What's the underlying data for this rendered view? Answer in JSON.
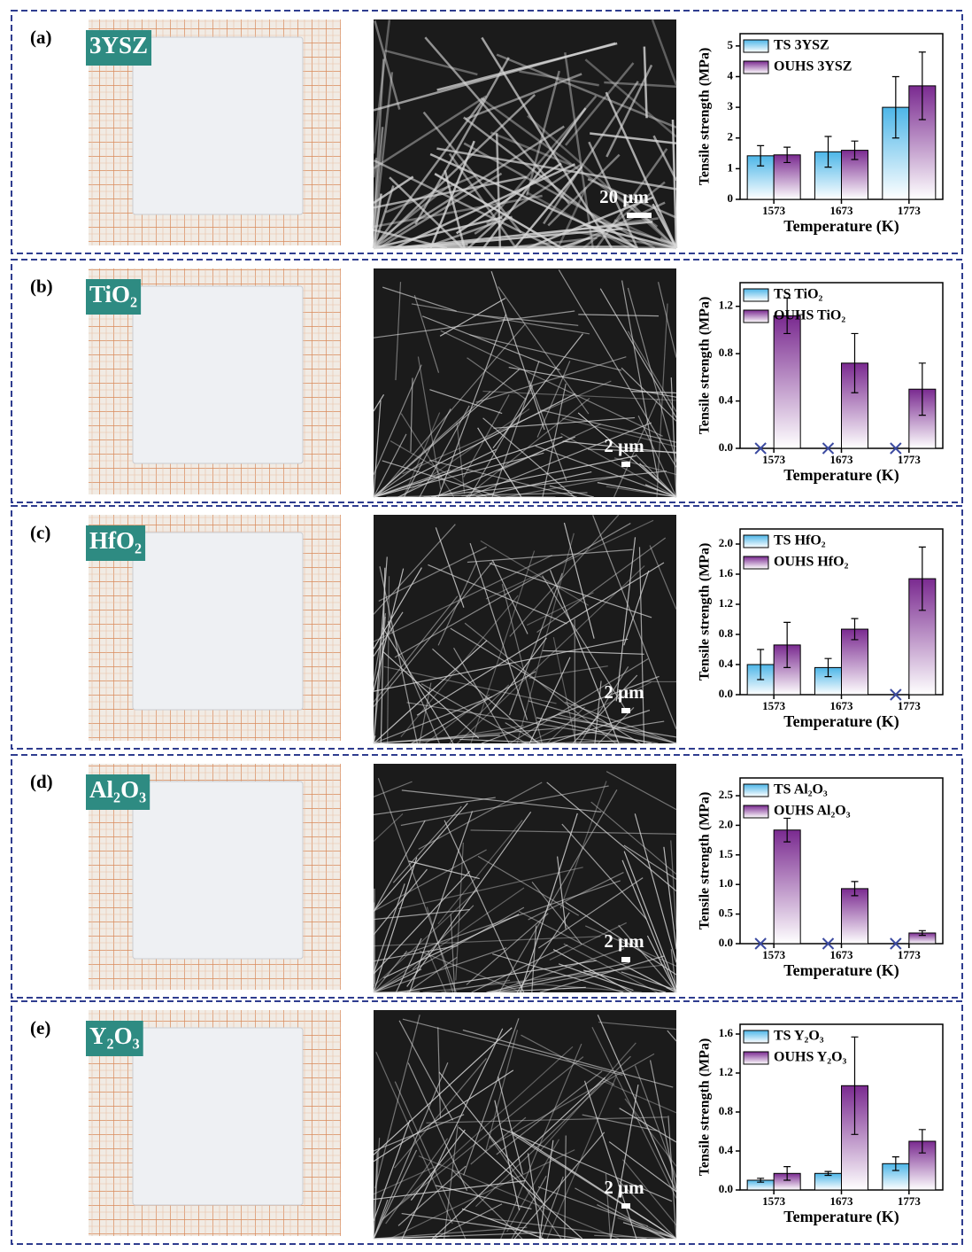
{
  "panels": [
    {
      "label": "(a)",
      "material": "3YSZ",
      "scale_bar": "20 μm"
    },
    {
      "label": "(b)",
      "material": "TiO₂",
      "scale_bar": "2 μm"
    },
    {
      "label": "(c)",
      "material": "HfO₂",
      "scale_bar": "2 μm"
    },
    {
      "label": "(d)",
      "material": "Al₂O₃",
      "scale_bar": "2 μm"
    },
    {
      "label": "(e)",
      "material": "Y₂O₃",
      "scale_bar": "2 μm"
    }
  ],
  "chart_data": [
    {
      "type": "bar",
      "x_label": "Temperature (K)",
      "y_label": "Tensile strength (MPa)",
      "categories": [
        "1573",
        "1673",
        "1773"
      ],
      "series": [
        {
          "name": "TS 3YSZ",
          "color": "#4db6e8",
          "values": [
            1.42,
            1.55,
            3.0
          ],
          "errors": [
            0.33,
            0.5,
            1.0
          ]
        },
        {
          "name": "OUHS 3YSZ",
          "color": "#7a2a90",
          "values": [
            1.45,
            1.6,
            3.7
          ],
          "errors": [
            0.25,
            0.3,
            1.1
          ]
        }
      ],
      "ylim": [
        0,
        5.4
      ],
      "yticks": [
        0,
        1,
        2,
        3,
        4,
        5
      ]
    },
    {
      "type": "bar",
      "x_label": "Temperature (K)",
      "y_label": "Tensile strength (MPa)",
      "categories": [
        "1573",
        "1673",
        "1773"
      ],
      "series": [
        {
          "name": "TS TiO₂",
          "color": "#4db6e8",
          "values": [
            0,
            0,
            0
          ],
          "errors": [
            null,
            null,
            null
          ]
        },
        {
          "name": "OUHS TiO₂",
          "color": "#7a2a90",
          "values": [
            1.12,
            0.72,
            0.5
          ],
          "errors": [
            0.15,
            0.25,
            0.22
          ]
        }
      ],
      "ylim": [
        0,
        1.4
      ],
      "yticks": [
        {
          "value": 0,
          "label": "0.0"
        },
        0.4,
        0.8,
        1.2
      ]
    },
    {
      "type": "bar",
      "x_label": "Temperature (K)",
      "y_label": "Tensile strength (MPa)",
      "categories": [
        "1573",
        "1673",
        "1773"
      ],
      "series": [
        {
          "name": "TS HfO₂",
          "color": "#4db6e8",
          "values": [
            0.4,
            0.36,
            0
          ],
          "errors": [
            0.2,
            0.12,
            null
          ]
        },
        {
          "name": "OUHS HfO₂",
          "color": "#7a2a90",
          "values": [
            0.66,
            0.87,
            1.54
          ],
          "errors": [
            0.3,
            0.14,
            0.42
          ]
        }
      ],
      "ylim": [
        0,
        2.2
      ],
      "yticks": [
        {
          "value": 0,
          "label": "0.0"
        },
        0.4,
        0.8,
        1.2,
        1.6,
        {
          "value": 2,
          "label": "2.0"
        }
      ]
    },
    {
      "type": "bar",
      "x_label": "Temperature (K)",
      "y_label": "Tensile strength (MPa)",
      "categories": [
        "1573",
        "1673",
        "1773"
      ],
      "series": [
        {
          "name": "TS Al₂O₃",
          "color": "#4db6e8",
          "values": [
            0,
            0,
            0
          ],
          "errors": [
            null,
            null,
            null
          ]
        },
        {
          "name": "OUHS Al₂O₃",
          "color": "#7a2a90",
          "values": [
            1.92,
            0.93,
            0.18
          ],
          "errors": [
            0.2,
            0.12,
            0.04
          ]
        }
      ],
      "ylim": [
        0,
        2.8
      ],
      "yticks": [
        {
          "value": 0,
          "label": "0.0"
        },
        0.5,
        {
          "value": 1,
          "label": "1.0"
        },
        1.5,
        {
          "value": 2,
          "label": "2.0"
        },
        2.5
      ]
    },
    {
      "type": "bar",
      "x_label": "Temperature (K)",
      "y_label": "Tensile strength (MPa)",
      "categories": [
        "1573",
        "1673",
        "1773"
      ],
      "series": [
        {
          "name": "TS Y₂O₃",
          "color": "#4db6e8",
          "values": [
            0.1,
            0.17,
            0.27
          ],
          "errors": [
            0.02,
            0.02,
            0.07
          ]
        },
        {
          "name": "OUHS Y₂O₃",
          "color": "#7a2a90",
          "values": [
            0.17,
            1.07,
            0.5
          ],
          "errors": [
            0.07,
            0.5,
            0.12
          ]
        }
      ],
      "ylim": [
        0,
        1.7
      ],
      "yticks": [
        {
          "value": 0,
          "label": "0.0"
        },
        0.4,
        0.8,
        1.2,
        1.6
      ]
    }
  ]
}
